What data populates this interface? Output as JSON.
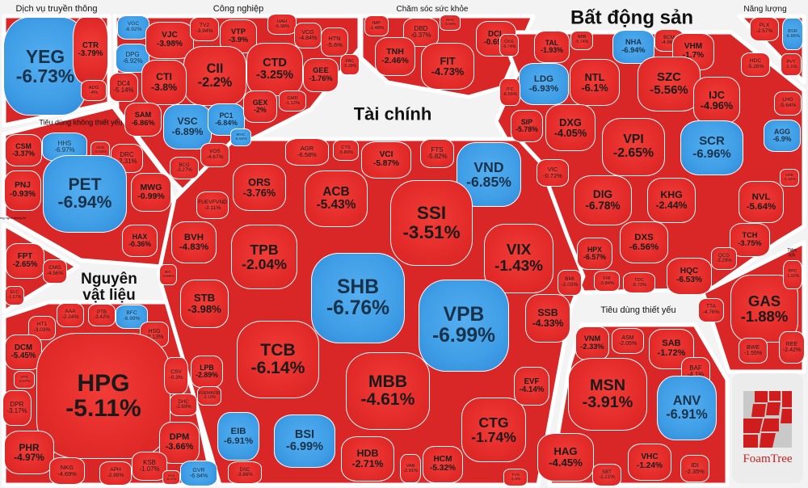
{
  "colors": {
    "down": "#e32c2a",
    "floor": "#3f9ee6",
    "background": "#f3f3f3"
  },
  "logo": {
    "text": "FoamTree"
  },
  "sectors": [
    {
      "id": "dvtt",
      "title": "Dịch vụ truyền thông",
      "cells": [
        {
          "t": "YEG",
          "c": "-6.73%",
          "k": "blue"
        },
        {
          "t": "CTR",
          "c": "-3.79%",
          "k": "red"
        },
        {
          "t": "ADG",
          "c": "-4%",
          "k": "red"
        }
      ]
    },
    {
      "id": "cn",
      "title": "Công nghiệp",
      "cells": [
        {
          "t": "VGC",
          "c": "-6.92%",
          "k": "blue"
        },
        {
          "t": "DPG",
          "c": "-6.92%",
          "k": "blue"
        },
        {
          "t": "VJC",
          "c": "-3.98%",
          "k": "red"
        },
        {
          "t": "TV2",
          "c": "-3.94%",
          "k": "red"
        },
        {
          "t": "VTP",
          "c": "-3.9%",
          "k": "red"
        },
        {
          "t": "HAH",
          "c": "-5.38%",
          "k": "red"
        },
        {
          "t": "VCG",
          "c": "-4.84%",
          "k": "red"
        },
        {
          "t": "HTN",
          "c": "-5.6%",
          "k": "red"
        },
        {
          "t": "PAC",
          "c": "-5.38%",
          "k": "red"
        },
        {
          "t": "CII",
          "c": "-2.2%",
          "k": "red"
        },
        {
          "t": "CTD",
          "c": "-3.25%",
          "k": "red"
        },
        {
          "t": "GEE",
          "c": "-1.76%",
          "k": "red"
        },
        {
          "t": "CTI",
          "c": "-3.8%",
          "k": "red"
        },
        {
          "t": "DC4",
          "c": "-5.14%",
          "k": "red"
        },
        {
          "t": "SAM",
          "c": "-6.86%",
          "k": "red"
        },
        {
          "t": "VSC",
          "c": "-6.89%",
          "k": "blue"
        },
        {
          "t": "PC1",
          "c": "-6.84%",
          "k": "blue"
        },
        {
          "t": "MHC",
          "c": "-6.62%",
          "k": "blue"
        },
        {
          "t": "GEX",
          "c": "-2%",
          "k": "red"
        },
        {
          "t": "GMD",
          "c": "-1.12%",
          "k": "red"
        },
        {
          "t": "VOS",
          "c": "-4.67%",
          "k": "red"
        },
        {
          "t": "BCG",
          "c": "-3.27%",
          "k": "red"
        }
      ]
    },
    {
      "id": "csk",
      "title": "Chăm sóc sức khỏe",
      "cells": [
        {
          "t": "IMP",
          "c": "-1.48%",
          "k": "red"
        },
        {
          "t": "DBD",
          "c": "-0.37%",
          "k": "red"
        },
        {
          "t": "DHG",
          "c": "-0.59%",
          "k": "red"
        },
        {
          "t": "DCL",
          "c": "-0.69%",
          "k": "red"
        },
        {
          "t": "TNH",
          "c": "-2.46%",
          "k": "red"
        },
        {
          "t": "FIT",
          "c": "-4.73%",
          "k": "red"
        }
      ]
    },
    {
      "id": "bds",
      "title": "Bất động sản",
      "cells": [
        {
          "t": "CKG",
          "c": "-3.74%",
          "k": "red"
        },
        {
          "t": "TAL",
          "c": "-1.93%",
          "k": "red"
        },
        {
          "t": "NBB",
          "c": "-5.74%",
          "k": "red"
        },
        {
          "t": "NHA",
          "c": "-6.94%",
          "k": "blue"
        },
        {
          "t": "BCM",
          "c": "-4.86%",
          "k": "red"
        },
        {
          "t": "VHM",
          "c": "-1.7%",
          "k": "red"
        },
        {
          "t": "HDC",
          "c": "-5.26%",
          "k": "red"
        },
        {
          "t": "LDG",
          "c": "-6.93%",
          "k": "blue"
        },
        {
          "t": "NTL",
          "c": "-6.1%",
          "k": "red"
        },
        {
          "t": "SZC",
          "c": "-5.56%",
          "k": "red"
        },
        {
          "t": "IJC",
          "c": "-4.96%",
          "k": "red"
        },
        {
          "t": "LHG",
          "c": "-5.64%",
          "k": "red"
        },
        {
          "t": "AGG",
          "c": "-6.9%",
          "k": "blue"
        },
        {
          "t": "ITC",
          "c": "-6.55%",
          "k": "red"
        },
        {
          "t": "SIP",
          "c": "-5.78%",
          "k": "red"
        },
        {
          "t": "DXG",
          "c": "-4.05%",
          "k": "red"
        },
        {
          "t": "VPI",
          "c": "-2.65%",
          "k": "red"
        },
        {
          "t": "SCR",
          "c": "-6.96%",
          "k": "blue"
        },
        {
          "t": "VIC",
          "c": "-0.72%",
          "k": "red"
        },
        {
          "t": "DIG",
          "c": "-6.78%",
          "k": "red"
        },
        {
          "t": "KHG",
          "c": "-2.44%",
          "k": "red"
        },
        {
          "t": "NVL",
          "c": "-5.64%",
          "k": "red"
        },
        {
          "t": "VRE",
          "c": "-1.32%",
          "k": "red"
        },
        {
          "t": "TCH",
          "c": "-3.75%",
          "k": "red"
        },
        {
          "t": "DXS",
          "c": "-6.56%",
          "k": "red"
        },
        {
          "t": "HPX",
          "c": "-6.57%",
          "k": "red"
        },
        {
          "t": "QCG",
          "c": "-3.29%",
          "k": "red"
        },
        {
          "t": "HQC",
          "c": "-6.53%",
          "k": "red"
        },
        {
          "t": "FIR",
          "c": "-3.84%",
          "k": "red"
        },
        {
          "t": "TDC",
          "c": "-5.73%",
          "k": "red"
        }
      ]
    },
    {
      "id": "nl",
      "title": "Năng lượng",
      "cells": [
        {
          "t": "PLX",
          "c": "-2.57%",
          "k": "red"
        },
        {
          "t": "BSR",
          "c": "-6.86%",
          "k": "blue"
        },
        {
          "t": "PVT",
          "c": "-1.1%",
          "k": "red"
        }
      ]
    },
    {
      "id": "tdkty",
      "title": "Tiêu dùng không thiết yếu",
      "cells": [
        {
          "t": "CSM",
          "c": "-3.37%",
          "k": "red"
        },
        {
          "t": "HHS",
          "c": "-6.97%",
          "k": "blue"
        },
        {
          "t": "ADS",
          "c": "-3.63%",
          "k": "red"
        },
        {
          "t": "DRC",
          "c": "-2.31%",
          "k": "red"
        },
        {
          "t": "PNJ",
          "c": "-0.93%",
          "k": "red"
        },
        {
          "t": "PET",
          "c": "-6.94%",
          "k": "blue"
        },
        {
          "t": "MWG",
          "c": "-0.99%",
          "k": "red"
        },
        {
          "t": "HAX",
          "c": "-0.36%",
          "k": "red"
        }
      ]
    },
    {
      "id": "cntt",
      "title": "Công nghệ thông tin",
      "cells": [
        {
          "t": "FPT",
          "c": "-2.65%",
          "k": "red"
        },
        {
          "t": "CMG",
          "c": "-4.56%",
          "k": "red"
        },
        {
          "t": "ELC",
          "c": "-1.57%",
          "k": "red"
        }
      ]
    },
    {
      "id": "nvl",
      "title": "Nguyên vật liệu",
      "cells": [
        {
          "t": "AAA",
          "c": "-2.24%",
          "k": "red"
        },
        {
          "t": "PTB",
          "c": "-3.42%",
          "k": "red"
        },
        {
          "t": "BFC",
          "c": "-6.99%",
          "k": "blue"
        },
        {
          "t": "HT1",
          "c": "-3.03%",
          "k": "red"
        },
        {
          "t": "HSG",
          "c": "-2.13%",
          "k": "red"
        },
        {
          "t": "DCM",
          "c": "-5.45%",
          "k": "red"
        },
        {
          "t": "HPG",
          "c": "-5.11%",
          "k": "red"
        },
        {
          "t": "CSV",
          "c": "-0.3%",
          "k": "red"
        },
        {
          "t": "DHC",
          "c": "-2.69%",
          "k": "red"
        },
        {
          "t": "DPM",
          "c": "-3.66%",
          "k": "red"
        },
        {
          "t": "VPS",
          "c": "-3.57%",
          "k": "red"
        },
        {
          "t": "DPR",
          "c": "-3.17%",
          "k": "red"
        },
        {
          "t": "PHR",
          "c": "-4.97%",
          "k": "red"
        },
        {
          "t": "NKG",
          "c": "-4.69%",
          "k": "red"
        },
        {
          "t": "APH",
          "c": "-2.99%",
          "k": "red"
        },
        {
          "t": "KSB",
          "c": "-1.07%",
          "k": "red"
        },
        {
          "t": "DHA",
          "c": "-6.91%",
          "k": "red"
        },
        {
          "t": "GVR",
          "c": "-6.94%",
          "k": "blue"
        }
      ]
    },
    {
      "id": "tc",
      "title": "Tài chính",
      "cells": [
        {
          "t": "AGR",
          "c": "-6.58%",
          "k": "red"
        },
        {
          "t": "CTS",
          "c": "-5.89%",
          "k": "red"
        },
        {
          "t": "VCI",
          "c": "-5.87%",
          "k": "red"
        },
        {
          "t": "FTS",
          "c": "-5.82%",
          "k": "red"
        },
        {
          "t": "VND",
          "c": "-6.85%",
          "k": "blue"
        },
        {
          "t": "ORS",
          "c": "-3.76%",
          "k": "red"
        },
        {
          "t": "ACB",
          "c": "-5.43%",
          "k": "red"
        },
        {
          "t": "SSI",
          "c": "-3.51%",
          "k": "red"
        },
        {
          "t": "FUEVFVND",
          "c": "-3.11%",
          "k": "red"
        },
        {
          "t": "BVH",
          "c": "-4.83%",
          "k": "red"
        },
        {
          "t": "TPB",
          "c": "-2.04%",
          "k": "red"
        },
        {
          "t": "VIX",
          "c": "-1.43%",
          "k": "red"
        },
        {
          "t": "SHB",
          "c": "-6.76%",
          "k": "blue"
        },
        {
          "t": "BIC",
          "c": "-3.58%",
          "k": "red"
        },
        {
          "t": "STB",
          "c": "-3.98%",
          "k": "red"
        },
        {
          "t": "VPB",
          "c": "-6.99%",
          "k": "blue"
        },
        {
          "t": "BMI",
          "c": "-2.03%",
          "k": "red"
        },
        {
          "t": "SSB",
          "c": "-4.33%",
          "k": "red"
        },
        {
          "t": "TCB",
          "c": "-6.14%",
          "k": "red"
        },
        {
          "t": "MBB",
          "c": "-4.61%",
          "k": "red"
        },
        {
          "t": "LPB",
          "c": "-2.89%",
          "k": "red"
        },
        {
          "t": "FUEMAV30",
          "c": "-3.10%",
          "k": "red"
        },
        {
          "t": "EIB",
          "c": "-6.91%",
          "k": "blue"
        },
        {
          "t": "BSI",
          "c": "-6.99%",
          "k": "blue"
        },
        {
          "t": "HDB",
          "c": "-2.71%",
          "k": "red"
        },
        {
          "t": "VAB",
          "c": "-2.91%",
          "k": "red"
        },
        {
          "t": "HCM",
          "c": "-5.32%",
          "k": "red"
        },
        {
          "t": "CTG",
          "c": "-1.74%",
          "k": "red"
        },
        {
          "t": "EVF",
          "c": "-4.14%",
          "k": "red"
        },
        {
          "t": "DSC",
          "c": "-3.86%",
          "k": "red"
        },
        {
          "t": "TVS",
          "c": "-1.5%",
          "k": "red"
        }
      ]
    },
    {
      "id": "tdty",
      "title": "Tiêu dùng thiết yếu",
      "cells": [
        {
          "t": "VNM",
          "c": "-2.33%",
          "k": "red"
        },
        {
          "t": "ASM",
          "c": "-2.05%",
          "k": "red"
        },
        {
          "t": "SAB",
          "c": "-1.72%",
          "k": "red"
        },
        {
          "t": "BAF",
          "c": "-4.1%",
          "k": "red"
        },
        {
          "t": "MSN",
          "c": "-3.91%",
          "k": "red"
        },
        {
          "t": "ANV",
          "c": "-6.91%",
          "k": "blue"
        },
        {
          "t": "HAG",
          "c": "-4.45%",
          "k": "red"
        },
        {
          "t": "SBT",
          "c": "-1.21%",
          "k": "red"
        },
        {
          "t": "VHC",
          "c": "-1.24%",
          "k": "red"
        },
        {
          "t": "IDI",
          "c": "-2.35%",
          "k": "red"
        }
      ]
    },
    {
      "id": "ti",
      "title": "Tiện ích",
      "cells": [
        {
          "t": "TTA",
          "c": "-4.76%",
          "k": "red"
        },
        {
          "t": "GAS",
          "c": "-1.88%",
          "k": "red"
        },
        {
          "t": "PPC",
          "c": "-1.92%",
          "k": "red"
        },
        {
          "t": "BWE",
          "c": "-1.55%",
          "k": "red"
        },
        {
          "t": "REE",
          "c": "-2.42%",
          "k": "red"
        }
      ]
    }
  ]
}
